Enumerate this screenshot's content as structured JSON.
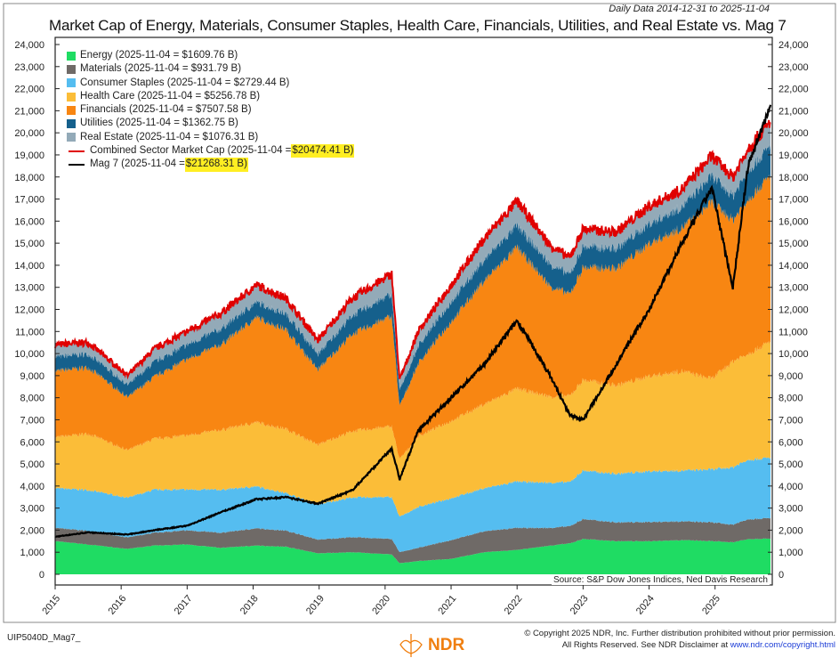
{
  "chart_data": {
    "type": "area",
    "title": "Market Cap of Energy, Materials, Consumer Staples, Health Care, Financials, Utilities, and Real Estate vs. Mag 7",
    "subtitle": "Daily Data 2014-12-31 to 2025-11-04",
    "source": "Source: S&P Dow Jones Indices, Ned Davis Research",
    "ylabel": "",
    "ylim": [
      0,
      24000
    ],
    "xlim": [
      2015.0,
      2025.84
    ],
    "y_ticks": [
      "0",
      "1,000",
      "2,000",
      "3,000",
      "4,000",
      "5,000",
      "6,000",
      "7,000",
      "8,000",
      "9,000",
      "10,000",
      "11,000",
      "12,000",
      "13,000",
      "14,000",
      "15,000",
      "16,000",
      "17,000",
      "18,000",
      "19,000",
      "20,000",
      "21,000",
      "22,000",
      "23,000",
      "24,000"
    ],
    "x_ticks": [
      "2015",
      "2016",
      "2017",
      "2018",
      "2019",
      "2020",
      "2021",
      "2022",
      "2023",
      "2024",
      "2025"
    ],
    "legend": [
      {
        "name": "Energy",
        "label": "Energy (2025-11-04 = $1609.76 B)",
        "color": "#1fdc63",
        "kind": "area"
      },
      {
        "name": "Materials",
        "label": "Materials (2025-11-04 = $931.79 B)",
        "color": "#6f6a67",
        "kind": "area"
      },
      {
        "name": "Consumer Staples",
        "label": "Consumer Staples (2025-11-04 = $2729.44 B)",
        "color": "#55bdf0",
        "kind": "area"
      },
      {
        "name": "Health Care",
        "label": "Health Care (2025-11-04 = $5256.78 B)",
        "color": "#fbbd38",
        "kind": "area"
      },
      {
        "name": "Financials",
        "label": "Financials (2025-11-04 = $7507.58 B)",
        "color": "#f88612",
        "kind": "area"
      },
      {
        "name": "Utilities",
        "label": "Utilities (2025-11-04 = $1362.75 B)",
        "color": "#15608c",
        "kind": "area"
      },
      {
        "name": "Real Estate",
        "label": "Real Estate (2025-11-04 = $1076.31 B)",
        "color": "#93aab8",
        "kind": "area"
      },
      {
        "name": "Combined Sector Market Cap",
        "label": "Combined Sector Market Cap (2025-11-04 = ",
        "value": "$20474.41 B)",
        "color": "#e00000",
        "kind": "line"
      },
      {
        "name": "Mag 7",
        "label": "Mag 7 (2025-11-04 = ",
        "value": "$21268.31 B)",
        "color": "#000000",
        "kind": "line"
      }
    ],
    "columns": [
      "year",
      "Energy",
      "Materials",
      "Consumer Staples",
      "Health Care",
      "Financials",
      "Utilities",
      "Real Estate",
      "Mag 7"
    ],
    "rows": [
      [
        2015.0,
        1500,
        600,
        1800,
        2300,
        3000,
        650,
        550,
        1700
      ],
      [
        2015.5,
        1350,
        620,
        1850,
        2550,
        3000,
        620,
        510,
        1900
      ],
      [
        2016.1,
        1150,
        520,
        1800,
        2150,
        2400,
        560,
        420,
        1800
      ],
      [
        2016.5,
        1300,
        580,
        1950,
        2300,
        2800,
        680,
        590,
        2000
      ],
      [
        2017.0,
        1350,
        640,
        1850,
        2450,
        3450,
        660,
        600,
        2200
      ],
      [
        2017.5,
        1200,
        680,
        1950,
        2700,
        3850,
        720,
        700,
        2800
      ],
      [
        2018.05,
        1300,
        780,
        1900,
        2900,
        4750,
        700,
        770,
        3400
      ],
      [
        2018.5,
        1250,
        730,
        1700,
        2900,
        4500,
        720,
        700,
        3500
      ],
      [
        2018.98,
        950,
        620,
        1600,
        2700,
        3400,
        700,
        630,
        3200
      ],
      [
        2019.5,
        1000,
        680,
        1800,
        3000,
        4400,
        850,
        770,
        3800
      ],
      [
        2020.1,
        900,
        700,
        1900,
        3200,
        5000,
        1000,
        900,
        5700
      ],
      [
        2020.22,
        500,
        500,
        1600,
        2600,
        2400,
        700,
        500,
        4300
      ],
      [
        2020.5,
        600,
        600,
        1850,
        3200,
        3300,
        800,
        650,
        6500
      ],
      [
        2021.0,
        700,
        850,
        1900,
        3500,
        4500,
        900,
        750,
        8000
      ],
      [
        2021.5,
        1000,
        950,
        1950,
        3800,
        5600,
        950,
        950,
        9500
      ],
      [
        2022.0,
        1100,
        1000,
        2100,
        4200,
        6400,
        1000,
        1100,
        11500
      ],
      [
        2022.5,
        1300,
        800,
        2050,
        3900,
        5000,
        1000,
        850,
        9000
      ],
      [
        2022.8,
        1400,
        780,
        2000,
        3900,
        4600,
        900,
        750,
        7200
      ],
      [
        2023.0,
        1600,
        900,
        2200,
        4100,
        5100,
        950,
        800,
        7000
      ],
      [
        2023.5,
        1500,
        850,
        2200,
        4000,
        5300,
        900,
        750,
        9500
      ],
      [
        2024.0,
        1500,
        870,
        2300,
        4300,
        6000,
        900,
        800,
        12000
      ],
      [
        2024.5,
        1550,
        850,
        2300,
        4500,
        6500,
        950,
        800,
        15000
      ],
      [
        2024.95,
        1500,
        850,
        2400,
        4100,
        8000,
        1200,
        900,
        17500
      ],
      [
        2025.27,
        1450,
        800,
        2600,
        4800,
        6400,
        1100,
        850,
        13000
      ],
      [
        2025.5,
        1600,
        900,
        2700,
        4800,
        7000,
        1300,
        1000,
        18500
      ],
      [
        2025.84,
        1609.76,
        931.79,
        2729.44,
        5256.78,
        7507.58,
        1362.75,
        1076.31,
        21268.31
      ]
    ],
    "grid": false,
    "legend_position": "top-left"
  },
  "footer": {
    "chart_id": "UIP5040D_Mag7_",
    "copyright_line1": "© Copyright 2025 NDR, Inc. Further distribution prohibited without prior permission.",
    "copyright_line2": "All Rights Reserved. See NDR Disclaimer at ",
    "copyright_link": "www.ndr.com/copyright.html",
    "logo_text": "NDR"
  }
}
